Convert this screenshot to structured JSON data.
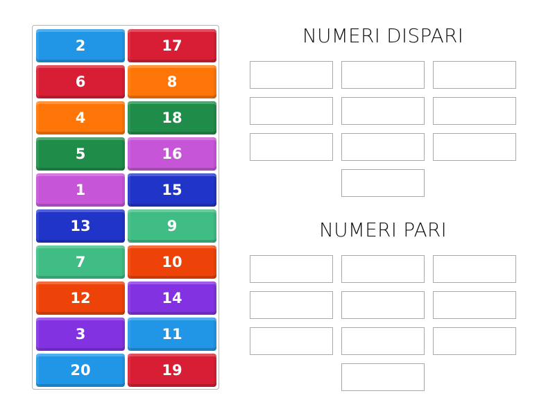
{
  "tiles": [
    {
      "label": "2",
      "color": "#2196e6"
    },
    {
      "label": "17",
      "color": "#d81e34"
    },
    {
      "label": "6",
      "color": "#d81e34"
    },
    {
      "label": "8",
      "color": "#ff7608"
    },
    {
      "label": "4",
      "color": "#ff7608"
    },
    {
      "label": "18",
      "color": "#1f8c4a"
    },
    {
      "label": "5",
      "color": "#1f8c4a"
    },
    {
      "label": "16",
      "color": "#c655d8"
    },
    {
      "label": "1",
      "color": "#c655d8"
    },
    {
      "label": "15",
      "color": "#2034c8"
    },
    {
      "label": "13",
      "color": "#2034c8"
    },
    {
      "label": "9",
      "color": "#40bd84"
    },
    {
      "label": "7",
      "color": "#40bd84"
    },
    {
      "label": "10",
      "color": "#ee4308"
    },
    {
      "label": "12",
      "color": "#ee4308"
    },
    {
      "label": "14",
      "color": "#8232e0"
    },
    {
      "label": "3",
      "color": "#8232e0"
    },
    {
      "label": "11",
      "color": "#2196e6"
    },
    {
      "label": "20",
      "color": "#2196e6"
    },
    {
      "label": "19",
      "color": "#d81e34"
    }
  ],
  "groups": [
    {
      "title": "NUMERI DISPARI",
      "slot_count": 10
    },
    {
      "title": "NUMERI PARI",
      "slot_count": 10
    }
  ]
}
